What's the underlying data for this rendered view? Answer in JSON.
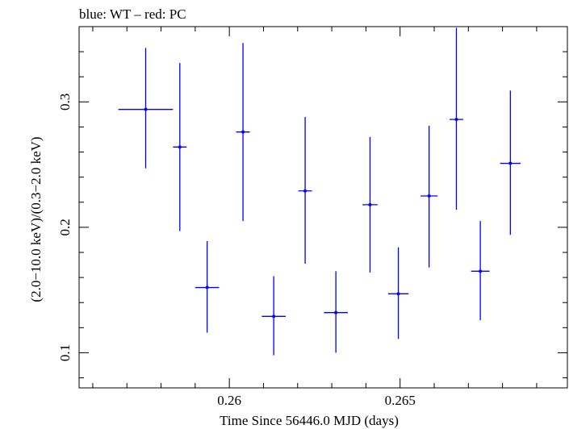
{
  "chart_data": {
    "type": "scatter",
    "title": "blue: WT – red: PC",
    "xlabel": "Time Since 56446.0 MJD (days)",
    "ylabel": "(2.0−10.0 keV)/(0.3−2.0 keV)",
    "xlim": [
      0.2556,
      0.2699
    ],
    "ylim": [
      0.072,
      0.36
    ],
    "x_ticks": [
      0.26,
      0.265
    ],
    "x_tick_labels": [
      "0.26",
      "0.265"
    ],
    "y_ticks": [
      0.1,
      0.2,
      0.3
    ],
    "y_tick_labels": [
      "0.1",
      "0.2",
      "0.3"
    ],
    "grid": false,
    "legend": "none",
    "series": [
      {
        "color": "#0000ff",
        "points": [
          {
            "x": 0.25755,
            "xerr": 0.0008,
            "y": 0.294,
            "yerr_low": 0.047,
            "yerr_high": 0.049
          },
          {
            "x": 0.25855,
            "xerr": 0.0002,
            "y": 0.264,
            "yerr_low": 0.067,
            "yerr_high": 0.067
          },
          {
            "x": 0.25935,
            "xerr": 0.00035,
            "y": 0.152,
            "yerr_low": 0.036,
            "yerr_high": 0.037
          },
          {
            "x": 0.2604,
            "xerr": 0.0002,
            "y": 0.276,
            "yerr_low": 0.071,
            "yerr_high": 0.071
          },
          {
            "x": 0.2613,
            "xerr": 0.00035,
            "y": 0.129,
            "yerr_low": 0.031,
            "yerr_high": 0.032
          },
          {
            "x": 0.26222,
            "xerr": 0.0002,
            "y": 0.229,
            "yerr_low": 0.058,
            "yerr_high": 0.059
          },
          {
            "x": 0.26312,
            "xerr": 0.00035,
            "y": 0.132,
            "yerr_low": 0.032,
            "yerr_high": 0.033
          },
          {
            "x": 0.26412,
            "xerr": 0.00022,
            "y": 0.218,
            "yerr_low": 0.054,
            "yerr_high": 0.054
          },
          {
            "x": 0.26495,
            "xerr": 0.0003,
            "y": 0.147,
            "yerr_low": 0.036,
            "yerr_high": 0.037
          },
          {
            "x": 0.26585,
            "xerr": 0.00025,
            "y": 0.225,
            "yerr_low": 0.057,
            "yerr_high": 0.056
          },
          {
            "x": 0.26665,
            "xerr": 0.0002,
            "y": 0.286,
            "yerr_low": 0.072,
            "yerr_high": 0.073
          },
          {
            "x": 0.26735,
            "xerr": 0.00027,
            "y": 0.165,
            "yerr_low": 0.039,
            "yerr_high": 0.04
          },
          {
            "x": 0.26823,
            "xerr": 0.0003,
            "y": 0.251,
            "yerr_low": 0.057,
            "yerr_high": 0.058
          }
        ]
      }
    ]
  }
}
